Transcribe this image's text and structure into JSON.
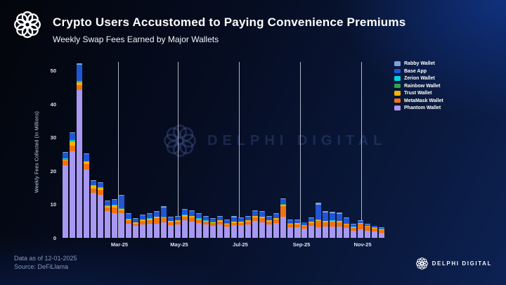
{
  "header": {
    "title": "Crypto Users Accustomed to Paying Convenience Premiums",
    "subtitle": "Weekly Swap Fees Earned by Major Wallets"
  },
  "watermark": {
    "text": "DELPHI DIGITAL"
  },
  "footer": {
    "data_as_of": "Data as of 12-01-2025",
    "source": "Source: DeFiLlama",
    "brand": "DELPHI DIGITAL"
  },
  "colors": {
    "background_dark": "#03050b",
    "background_blue": "#0d2254",
    "gridline": "rgba(215,222,235,0.8)",
    "rabby": "#7da2d9",
    "base": "#1f56d4",
    "zerion": "#00d5e8",
    "rainbow": "#2fa44e",
    "trust": "#f5b301",
    "metamask": "#f1720e",
    "phantom": "#a898f2"
  },
  "chart_data": {
    "type": "bar",
    "stacked": true,
    "title": "Weekly Swap Fees Earned by Major Wallets",
    "xlabel": "",
    "ylabel": "Weekly Fees Collected (In Millions)",
    "ylim": [
      0,
      50
    ],
    "yticks": [
      0,
      10,
      20,
      30,
      40,
      50
    ],
    "grid": "vertical-month-lines",
    "legend_position": "top-right",
    "legend_order_top_to_bottom": [
      "Rabby Wallet",
      "Base App",
      "Zerion Wallet",
      "Rainbow Wallet",
      "Trust Wallet",
      "MetaMask Wallet",
      "Phantom Wallet"
    ],
    "weeks": 46,
    "x_gridlines": [
      {
        "label": "Mar-25",
        "week_offset": 8.0
      },
      {
        "label": "May-25",
        "week_offset": 16.5
      },
      {
        "label": "Jul-25",
        "week_offset": 25.2
      },
      {
        "label": "Sep-25",
        "week_offset": 33.9
      },
      {
        "label": "Nov-25",
        "week_offset": 42.6
      }
    ],
    "series_note": "values in $ millions per week, listed bottom-to-top of stack",
    "series": [
      {
        "name": "Phantom Wallet",
        "color_key": "phantom",
        "values": [
          21.6,
          26.0,
          44.3,
          20.4,
          13.4,
          12.8,
          8.0,
          7.3,
          7.3,
          4.2,
          3.5,
          4.0,
          4.3,
          4.2,
          4.6,
          3.8,
          3.9,
          5.2,
          4.8,
          4.4,
          3.9,
          3.6,
          4.0,
          3.3,
          3.7,
          3.7,
          4.0,
          5.0,
          4.7,
          4.0,
          4.4,
          6.3,
          3.2,
          3.2,
          2.8,
          3.6,
          3.1,
          3.4,
          3.4,
          3.3,
          3.0,
          2.2,
          2.6,
          2.1,
          1.8,
          1.5
        ]
      },
      {
        "name": "MetaMask Wallet",
        "color_key": "metamask",
        "values": [
          1.5,
          1.6,
          1.3,
          1.7,
          1.4,
          1.5,
          1.0,
          1.8,
          1.0,
          1.0,
          0.8,
          1.0,
          1.0,
          1.6,
          1.2,
          0.9,
          1.0,
          1.2,
          1.3,
          1.0,
          0.9,
          0.8,
          0.9,
          0.7,
          0.8,
          0.8,
          0.9,
          1.1,
          1.2,
          0.9,
          1.1,
          3.2,
          0.8,
          0.9,
          0.7,
          0.9,
          1.9,
          1.3,
          1.4,
          1.3,
          0.9,
          0.8,
          1.6,
          1.2,
          1.0,
          0.9
        ]
      },
      {
        "name": "Trust Wallet",
        "color_key": "trust",
        "values": [
          0.3,
          1.3,
          0.9,
          0.6,
          0.7,
          0.6,
          0.4,
          0.5,
          0.4,
          0.3,
          0.3,
          0.4,
          0.4,
          0.5,
          0.4,
          0.3,
          0.3,
          0.4,
          0.4,
          0.3,
          0.3,
          0.3,
          0.3,
          0.3,
          0.3,
          0.3,
          0.3,
          0.4,
          0.4,
          0.3,
          0.3,
          0.5,
          0.3,
          0.3,
          0.25,
          0.3,
          0.3,
          0.3,
          0.3,
          0.4,
          0.3,
          0.2,
          0.2,
          0.2,
          0.2,
          0.2
        ]
      },
      {
        "name": "Rainbow Wallet",
        "color_key": "rainbow",
        "values": [
          0.1,
          0.1,
          0.3,
          0.1,
          0.1,
          0.1,
          0.1,
          0.1,
          0.1,
          0.05,
          0.05,
          0.05,
          0.05,
          0.05,
          0.05,
          0.05,
          0.05,
          0.05,
          0.05,
          0.05,
          0.05,
          0.05,
          0.05,
          0.05,
          0.05,
          0.05,
          0.05,
          0.05,
          0.05,
          0.05,
          0.05,
          0.05,
          0.05,
          0.05,
          0.05,
          0.05,
          0.05,
          0.05,
          0.05,
          0.05,
          0.05,
          0.05,
          0.05,
          0.05,
          0.05,
          0.05
        ]
      },
      {
        "name": "Zerion Wallet",
        "color_key": "zerion",
        "values": [
          0.2,
          0.2,
          0.2,
          0.2,
          0.2,
          0.2,
          0.1,
          0.1,
          0.1,
          0.05,
          0.05,
          0.05,
          0.05,
          0.05,
          0.05,
          0.05,
          0.05,
          0.05,
          0.05,
          0.05,
          0.05,
          0.05,
          0.05,
          0.05,
          0.05,
          0.05,
          0.05,
          0.05,
          0.05,
          0.05,
          0.05,
          0.05,
          0.05,
          0.05,
          0.05,
          0.05,
          0.05,
          0.05,
          0.05,
          0.05,
          0.05,
          0.05,
          0.05,
          0.05,
          0.05,
          0.05
        ]
      },
      {
        "name": "Base App",
        "color_key": "base",
        "values": [
          1.7,
          2.1,
          4.8,
          2.0,
          1.2,
          1.2,
          1.3,
          1.5,
          3.7,
          1.5,
          1.0,
          1.2,
          1.3,
          1.4,
          2.8,
          1.0,
          1.1,
          1.6,
          1.5,
          1.3,
          1.1,
          0.9,
          1.1,
          0.85,
          1.2,
          1.0,
          1.1,
          1.5,
          1.4,
          1.1,
          1.2,
          1.5,
          0.85,
          0.8,
          0.7,
          1.0,
          4.6,
          2.4,
          2.2,
          2.1,
          1.5,
          0.8,
          0.6,
          0.5,
          0.4,
          0.35
        ]
      },
      {
        "name": "Rabby Wallet",
        "color_key": "rabby",
        "values": [
          0.2,
          0.2,
          0.4,
          0.2,
          0.2,
          0.2,
          0.2,
          0.2,
          0.3,
          0.2,
          0.2,
          0.2,
          0.2,
          0.2,
          0.3,
          0.2,
          0.2,
          0.2,
          0.2,
          0.2,
          0.2,
          0.2,
          0.2,
          0.15,
          0.4,
          0.2,
          0.2,
          0.2,
          0.2,
          0.2,
          0.2,
          0.2,
          0.15,
          0.15,
          0.15,
          0.2,
          0.6,
          0.6,
          0.4,
          0.4,
          0.3,
          0.2,
          0.1,
          0.1,
          0.1,
          0.1
        ]
      }
    ]
  }
}
